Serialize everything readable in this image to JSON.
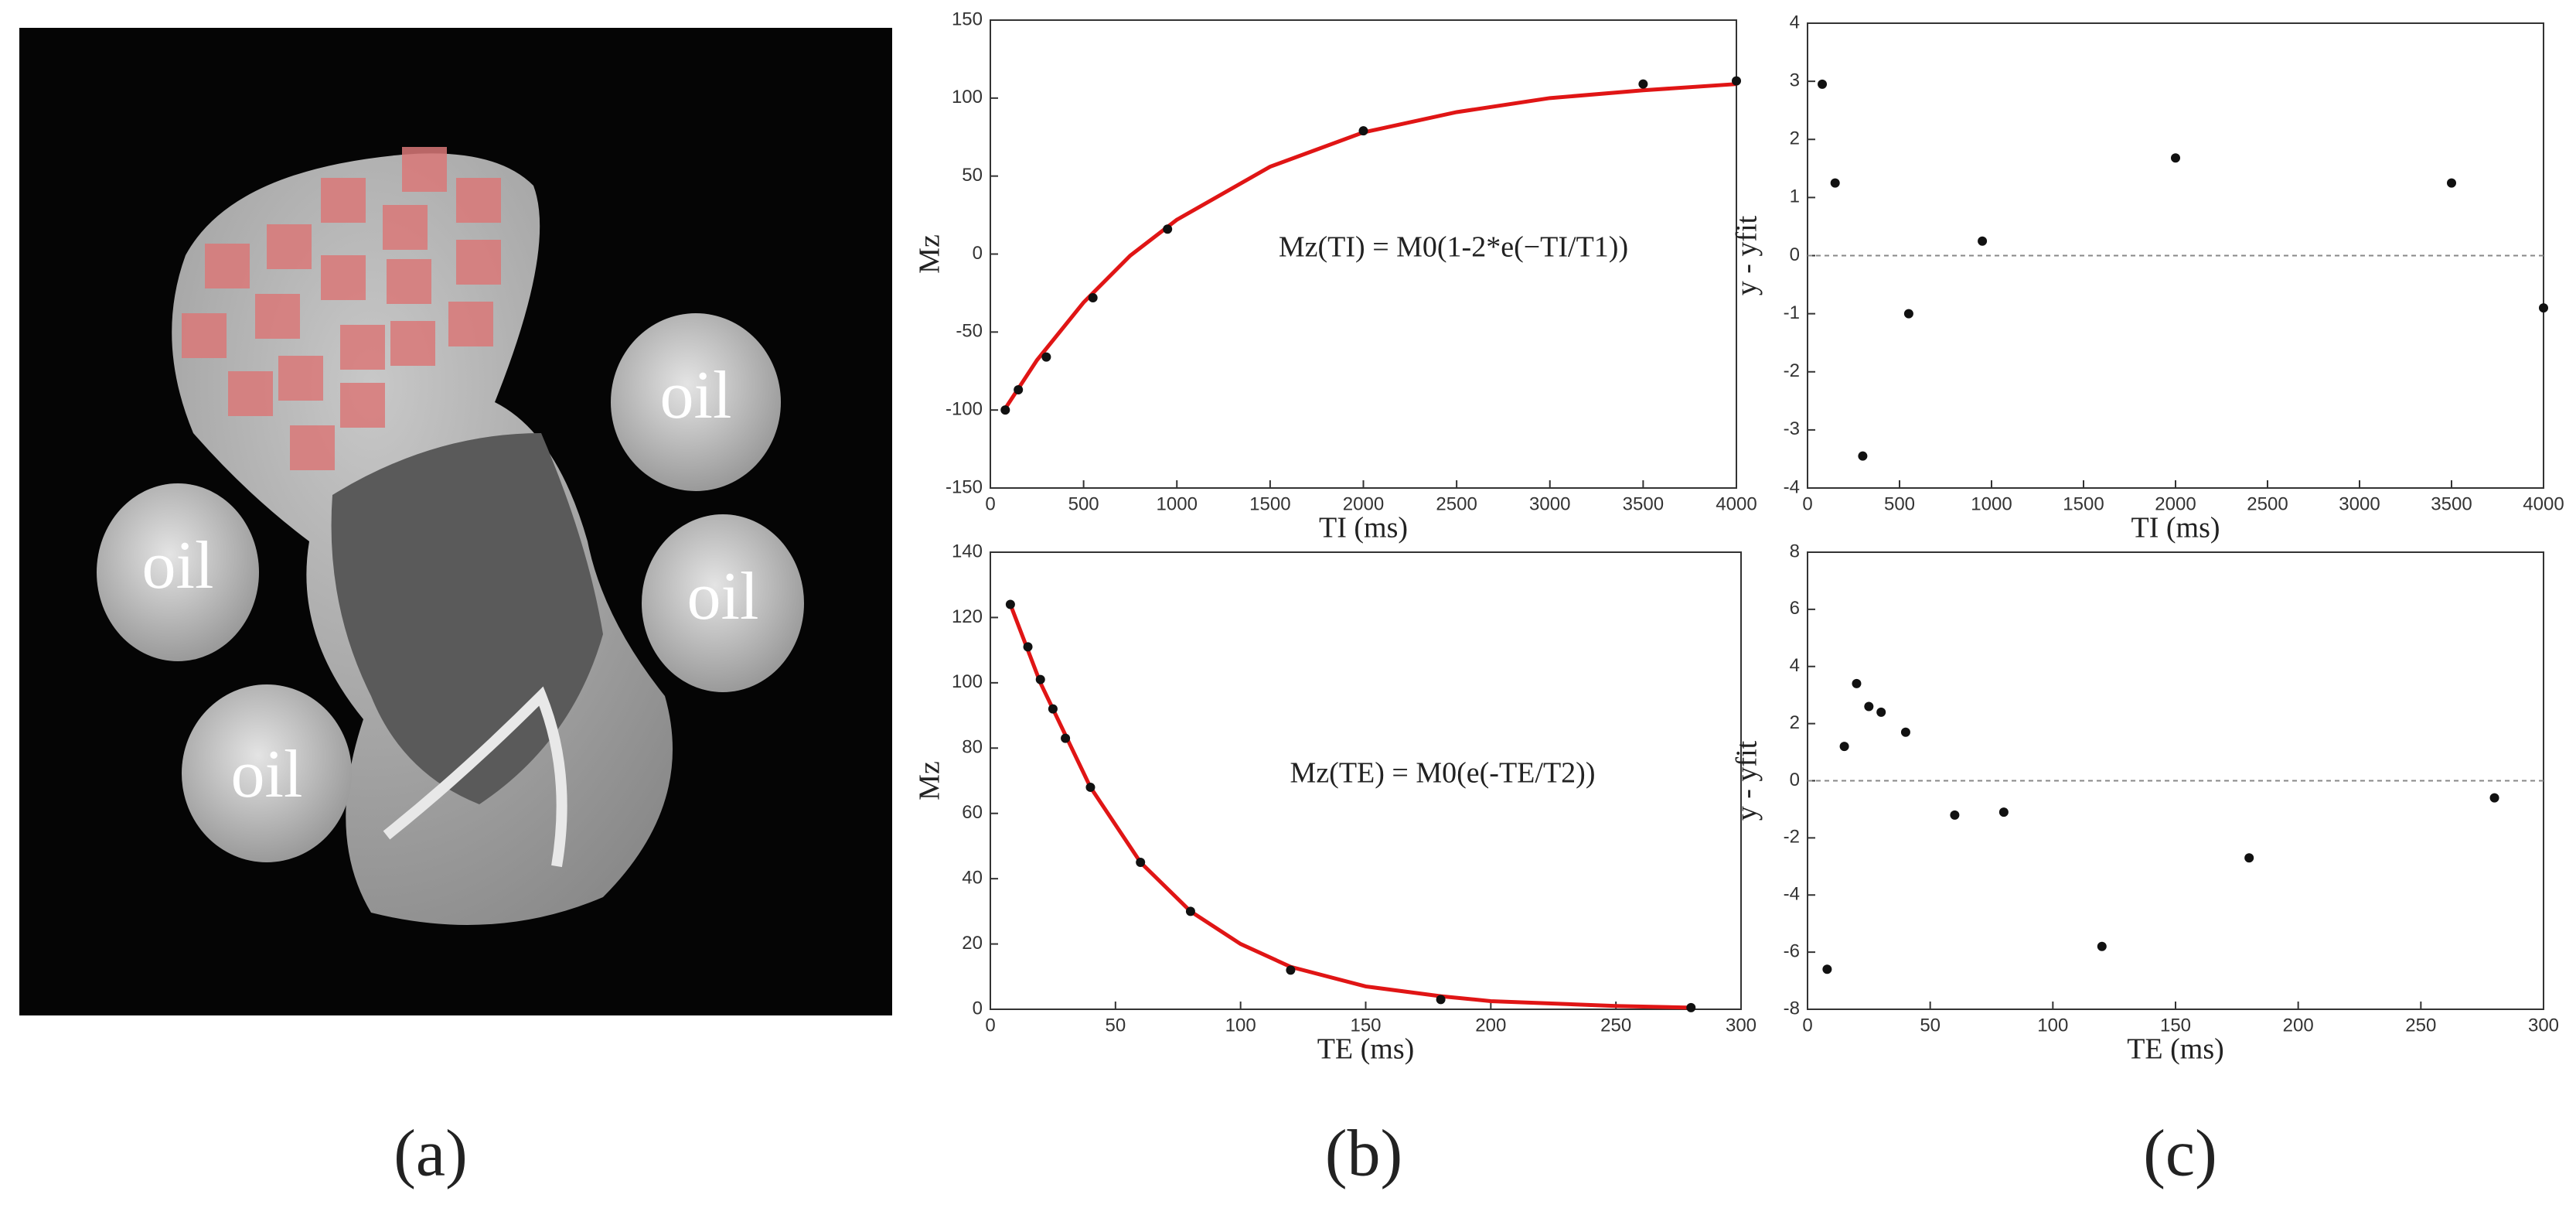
{
  "panel_labels": [
    "(a)",
    "(b)",
    "(c)"
  ],
  "image": {
    "oil_labels": [
      "oil",
      "oil",
      "oil",
      "oil"
    ]
  },
  "chart_data": [
    {
      "type": "scatter",
      "xlabel": "TI (ms)",
      "ylabel": "Mz",
      "annotation": "Mz(TI) = M0(1-2*e(−TI/T1))",
      "xlim": [
        0,
        4000
      ],
      "ylim": [
        -150,
        150
      ],
      "xticks": [
        0,
        500,
        1000,
        1500,
        2000,
        2500,
        3000,
        3500,
        4000
      ],
      "yticks": [
        -150,
        -100,
        -50,
        0,
        50,
        100,
        150
      ],
      "points": {
        "color": "#111111",
        "x": [
          80,
          150,
          300,
          550,
          950,
          2000,
          3500,
          4000
        ],
        "values": [
          -100,
          -87,
          -66,
          -28,
          16,
          79,
          109,
          111
        ]
      },
      "fit": {
        "color": "#e01515",
        "x": [
          80,
          250,
          500,
          750,
          1000,
          1500,
          2000,
          2500,
          3000,
          3500,
          4000
        ],
        "values": [
          -99,
          -68,
          -31,
          -1,
          22,
          56,
          78,
          91,
          100,
          105,
          109
        ]
      }
    },
    {
      "type": "scatter",
      "xlabel": "TI (ms)",
      "ylabel": "y - yfit",
      "xlim": [
        0,
        4000
      ],
      "ylim": [
        -4,
        4
      ],
      "xticks": [
        0,
        500,
        1000,
        1500,
        2000,
        2500,
        3000,
        3500,
        4000
      ],
      "yticks": [
        -4,
        -3,
        -2,
        -1,
        0,
        1,
        2,
        3,
        4
      ],
      "zero_line": true,
      "points": {
        "color": "#111111",
        "x": [
          80,
          150,
          300,
          550,
          950,
          2000,
          3500,
          4000
        ],
        "values": [
          2.95,
          1.25,
          -3.45,
          -1.0,
          0.25,
          1.68,
          1.25,
          -0.9
        ]
      }
    },
    {
      "type": "scatter",
      "xlabel": "TE (ms)",
      "ylabel": "Mz",
      "annotation": "Mz(TE) = M0(e(-TE/T2))",
      "xlim": [
        0,
        300
      ],
      "ylim": [
        0,
        140
      ],
      "xticks": [
        0,
        50,
        100,
        150,
        200,
        250,
        300
      ],
      "yticks": [
        0,
        20,
        40,
        60,
        80,
        100,
        120,
        140
      ],
      "points": {
        "color": "#111111",
        "x": [
          8,
          15,
          20,
          25,
          30,
          40,
          60,
          80,
          120,
          180,
          280
        ],
        "values": [
          124,
          111,
          101,
          92,
          83,
          68,
          45,
          30,
          12,
          3,
          0.5
        ]
      },
      "fit": {
        "color": "#e01515",
        "x": [
          8,
          20,
          40,
          60,
          80,
          100,
          120,
          150,
          180,
          200,
          250,
          280
        ],
        "values": [
          124,
          100,
          68,
          45,
          30,
          20,
          13,
          7,
          4,
          2.5,
          1,
          0.5
        ]
      }
    },
    {
      "type": "scatter",
      "xlabel": "TE (ms)",
      "ylabel": "y - yfit",
      "xlim": [
        0,
        300
      ],
      "ylim": [
        -8,
        8
      ],
      "xticks": [
        0,
        50,
        100,
        150,
        200,
        250,
        300
      ],
      "yticks": [
        -8,
        -6,
        -4,
        -2,
        0,
        2,
        4,
        6,
        8
      ],
      "zero_line": true,
      "points": {
        "color": "#111111",
        "x": [
          8,
          15,
          20,
          25,
          30,
          40,
          60,
          80,
          120,
          180,
          280
        ],
        "values": [
          -6.6,
          1.2,
          3.4,
          2.6,
          2.4,
          1.7,
          -1.2,
          -1.1,
          -5.8,
          -2.7,
          -0.6
        ]
      }
    }
  ]
}
